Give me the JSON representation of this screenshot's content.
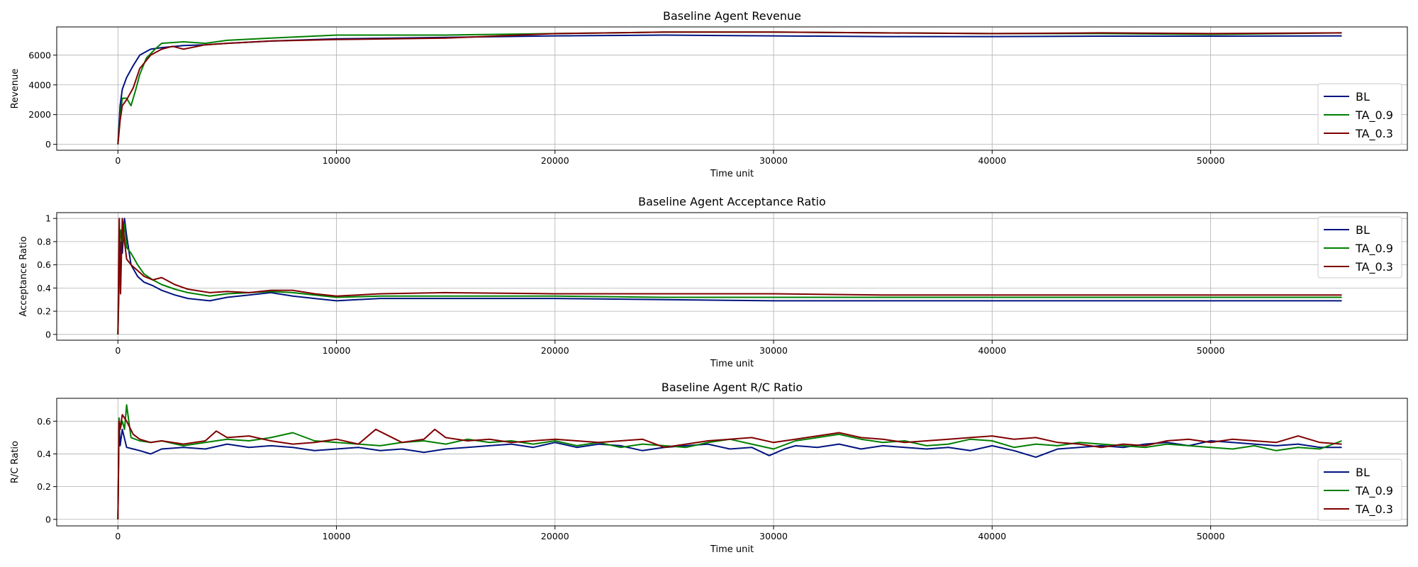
{
  "chart_data": [
    {
      "type": "line",
      "title": "Baseline Agent Revenue",
      "xlabel": "Time unit",
      "ylabel": "Revenue",
      "xlim": [
        -2800,
        59000
      ],
      "ylim": [
        -400,
        7900
      ],
      "xticks": [
        0,
        10000,
        20000,
        30000,
        40000,
        50000
      ],
      "yticks": [
        0,
        2000,
        4000,
        6000
      ],
      "grid": true,
      "legend_position": "lower-right",
      "series": [
        {
          "name": "BL",
          "color": "#00137f",
          "x": [
            0,
            100,
            200,
            400,
            700,
            1000,
            1500,
            2000,
            3000,
            4000,
            5000,
            7000,
            10000,
            15000,
            20000,
            25000,
            30000,
            35000,
            40000,
            45000,
            50000,
            56000
          ],
          "y": [
            0,
            2600,
            3700,
            4500,
            5300,
            6000,
            6400,
            6500,
            6650,
            6700,
            6800,
            6950,
            7100,
            7200,
            7300,
            7350,
            7300,
            7250,
            7250,
            7280,
            7280,
            7300
          ]
        },
        {
          "name": "TA_0.9",
          "color": "#007f00",
          "x": [
            0,
            100,
            200,
            400,
            600,
            800,
            1000,
            1300,
            1700,
            2000,
            3000,
            4000,
            5000,
            7000,
            10000,
            15000,
            20000,
            25000,
            30000,
            35000,
            40000,
            45000,
            50000,
            56000
          ],
          "y": [
            0,
            1900,
            3100,
            3100,
            2600,
            3600,
            4700,
            5800,
            6400,
            6800,
            6900,
            6800,
            7000,
            7150,
            7350,
            7350,
            7450,
            7550,
            7550,
            7500,
            7450,
            7450,
            7400,
            7500
          ]
        },
        {
          "name": "TA_0.3",
          "color": "#7f0000",
          "x": [
            0,
            100,
            200,
            400,
            700,
            1000,
            1500,
            2000,
            2500,
            3000,
            4000,
            5000,
            7000,
            10000,
            15000,
            20000,
            25000,
            30000,
            35000,
            40000,
            45000,
            50000,
            56000
          ],
          "y": [
            0,
            1600,
            2600,
            3000,
            3800,
            5100,
            6000,
            6400,
            6600,
            6400,
            6700,
            6800,
            6950,
            7050,
            7150,
            7450,
            7550,
            7550,
            7500,
            7450,
            7500,
            7450,
            7500
          ]
        }
      ]
    },
    {
      "type": "line",
      "title": "Baseline Agent Acceptance Ratio",
      "xlabel": "Time unit",
      "ylabel": "Acceptance Ratio",
      "xlim": [
        -2800,
        59000
      ],
      "ylim": [
        -0.05,
        1.05
      ],
      "xticks": [
        0,
        10000,
        20000,
        30000,
        40000,
        50000
      ],
      "yticks": [
        0.0,
        0.2,
        0.4,
        0.6,
        0.8,
        1.0
      ],
      "grid": true,
      "legend_position": "top-right",
      "series": [
        {
          "name": "BL",
          "color": "#00137f",
          "x": [
            0,
            60,
            120,
            200,
            300,
            400,
            600,
            900,
            1200,
            1600,
            2000,
            2600,
            3200,
            4200,
            5000,
            6000,
            7000,
            8000,
            9000,
            10000,
            12000,
            15000,
            20000,
            25000,
            30000,
            35000,
            40000,
            45000,
            50000,
            56000
          ],
          "y": [
            0,
            0.5,
            0.8,
            0.7,
            1.0,
            0.85,
            0.6,
            0.5,
            0.45,
            0.42,
            0.38,
            0.34,
            0.31,
            0.29,
            0.32,
            0.34,
            0.36,
            0.33,
            0.31,
            0.29,
            0.31,
            0.31,
            0.31,
            0.3,
            0.29,
            0.29,
            0.29,
            0.29,
            0.29,
            0.29
          ]
        },
        {
          "name": "TA_0.9",
          "color": "#007f00",
          "x": [
            0,
            60,
            120,
            200,
            300,
            400,
            600,
            900,
            1200,
            1600,
            2000,
            2600,
            3200,
            4200,
            5000,
            6000,
            7000,
            8000,
            9000,
            10000,
            12000,
            15000,
            20000,
            25000,
            30000,
            35000,
            40000,
            45000,
            50000,
            56000
          ],
          "y": [
            0,
            0.6,
            0.9,
            0.8,
            0.95,
            0.75,
            0.7,
            0.6,
            0.52,
            0.47,
            0.43,
            0.39,
            0.36,
            0.33,
            0.35,
            0.36,
            0.37,
            0.36,
            0.34,
            0.32,
            0.33,
            0.33,
            0.33,
            0.32,
            0.32,
            0.32,
            0.32,
            0.32,
            0.32,
            0.32
          ]
        },
        {
          "name": "TA_0.3",
          "color": "#7f0000",
          "x": [
            0,
            60,
            120,
            200,
            300,
            400,
            600,
            900,
            1200,
            1600,
            2000,
            2600,
            3200,
            4200,
            5000,
            6000,
            7000,
            8000,
            9000,
            10000,
            12000,
            15000,
            20000,
            25000,
            30000,
            35000,
            40000,
            45000,
            50000,
            56000
          ],
          "y": [
            0,
            1.0,
            0.35,
            1.0,
            0.8,
            0.65,
            0.6,
            0.55,
            0.5,
            0.47,
            0.49,
            0.43,
            0.39,
            0.36,
            0.37,
            0.36,
            0.38,
            0.38,
            0.35,
            0.33,
            0.35,
            0.36,
            0.35,
            0.35,
            0.35,
            0.34,
            0.34,
            0.34,
            0.34,
            0.34
          ]
        }
      ]
    },
    {
      "type": "line",
      "title": "Baseline Agent R/C Ratio",
      "xlabel": "Time unit",
      "ylabel": "R/C Ratio",
      "xlim": [
        -2800,
        59000
      ],
      "ylim": [
        -0.04,
        0.74
      ],
      "xticks": [
        0,
        10000,
        20000,
        30000,
        40000,
        50000
      ],
      "yticks": [
        0.0,
        0.2,
        0.4,
        0.6
      ],
      "grid": true,
      "legend_position": "lower-right",
      "series": [
        {
          "name": "BL",
          "color": "#00137f",
          "x": [
            0,
            50,
            100,
            200,
            400,
            700,
            1000,
            1500,
            2000,
            3000,
            4000,
            5000,
            6000,
            7000,
            8000,
            9000,
            10000,
            11000,
            12000,
            13000,
            14000,
            15000,
            16000,
            17000,
            18000,
            19000,
            20000,
            21000,
            22000,
            23000,
            24000,
            25000,
            26000,
            27000,
            28000,
            29000,
            29800,
            30500,
            31000,
            32000,
            33000,
            34000,
            35000,
            36000,
            37000,
            38000,
            39000,
            40000,
            41000,
            42000,
            43000,
            44000,
            45000,
            46000,
            47000,
            48000,
            49000,
            50000,
            51000,
            52000,
            53000,
            54000,
            55000,
            56000
          ],
          "y": [
            0,
            0.6,
            0.45,
            0.55,
            0.44,
            0.43,
            0.42,
            0.4,
            0.43,
            0.44,
            0.43,
            0.46,
            0.44,
            0.45,
            0.44,
            0.42,
            0.43,
            0.44,
            0.42,
            0.43,
            0.41,
            0.43,
            0.44,
            0.45,
            0.46,
            0.44,
            0.47,
            0.44,
            0.46,
            0.45,
            0.42,
            0.44,
            0.45,
            0.46,
            0.43,
            0.44,
            0.39,
            0.43,
            0.45,
            0.44,
            0.46,
            0.43,
            0.45,
            0.44,
            0.43,
            0.44,
            0.42,
            0.45,
            0.42,
            0.38,
            0.43,
            0.44,
            0.45,
            0.44,
            0.46,
            0.47,
            0.45,
            0.48,
            0.47,
            0.46,
            0.45,
            0.46,
            0.44,
            0.44
          ]
        },
        {
          "name": "TA_0.9",
          "color": "#007f00",
          "x": [
            0,
            50,
            100,
            200,
            300,
            400,
            600,
            1000,
            1500,
            2000,
            3000,
            4000,
            5000,
            6000,
            7000,
            8000,
            9000,
            10000,
            11000,
            12000,
            13000,
            14000,
            15000,
            16000,
            17000,
            18000,
            19000,
            20000,
            21000,
            22000,
            23000,
            24000,
            25000,
            26000,
            27000,
            28000,
            29000,
            30000,
            31000,
            32000,
            33000,
            34000,
            35000,
            36000,
            37000,
            38000,
            39000,
            40000,
            41000,
            42000,
            43000,
            44000,
            45000,
            46000,
            47000,
            48000,
            49000,
            50000,
            51000,
            52000,
            53000,
            54000,
            55000,
            56000
          ],
          "y": [
            0,
            0.62,
            0.55,
            0.6,
            0.55,
            0.7,
            0.5,
            0.48,
            0.47,
            0.48,
            0.45,
            0.47,
            0.49,
            0.48,
            0.5,
            0.53,
            0.48,
            0.47,
            0.46,
            0.45,
            0.47,
            0.48,
            0.46,
            0.49,
            0.47,
            0.48,
            0.46,
            0.48,
            0.45,
            0.47,
            0.44,
            0.46,
            0.45,
            0.44,
            0.47,
            0.49,
            0.46,
            0.43,
            0.48,
            0.5,
            0.52,
            0.49,
            0.47,
            0.48,
            0.45,
            0.46,
            0.49,
            0.48,
            0.44,
            0.46,
            0.45,
            0.47,
            0.46,
            0.45,
            0.44,
            0.46,
            0.45,
            0.44,
            0.43,
            0.45,
            0.42,
            0.44,
            0.43,
            0.48
          ]
        },
        {
          "name": "TA_0.3",
          "color": "#7f0000",
          "x": [
            0,
            50,
            100,
            200,
            400,
            700,
            1000,
            1500,
            2000,
            3000,
            4000,
            4500,
            5000,
            6000,
            7000,
            8000,
            9000,
            10000,
            11000,
            11800,
            13000,
            14000,
            14500,
            15000,
            16000,
            17000,
            18000,
            19000,
            20000,
            21000,
            22000,
            23000,
            24000,
            25000,
            26000,
            27000,
            28000,
            29000,
            30000,
            31000,
            32000,
            33000,
            34000,
            35000,
            36000,
            37000,
            38000,
            39000,
            40000,
            41000,
            42000,
            43000,
            44000,
            45000,
            46000,
            47000,
            48000,
            49000,
            50000,
            51000,
            52000,
            53000,
            54000,
            55000,
            56000
          ],
          "y": [
            0,
            0.6,
            0.55,
            0.64,
            0.6,
            0.52,
            0.49,
            0.47,
            0.48,
            0.46,
            0.48,
            0.54,
            0.5,
            0.51,
            0.48,
            0.46,
            0.47,
            0.49,
            0.46,
            0.55,
            0.47,
            0.49,
            0.55,
            0.5,
            0.48,
            0.49,
            0.47,
            0.48,
            0.49,
            0.48,
            0.47,
            0.48,
            0.49,
            0.44,
            0.46,
            0.48,
            0.49,
            0.5,
            0.47,
            0.49,
            0.51,
            0.53,
            0.5,
            0.49,
            0.47,
            0.48,
            0.49,
            0.5,
            0.51,
            0.49,
            0.5,
            0.47,
            0.46,
            0.44,
            0.46,
            0.45,
            0.48,
            0.49,
            0.47,
            0.49,
            0.48,
            0.47,
            0.51,
            0.47,
            0.46
          ]
        }
      ]
    }
  ]
}
